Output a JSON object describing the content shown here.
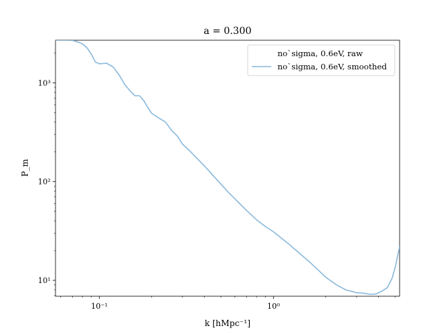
{
  "chart_data": {
    "type": "line",
    "title": "a = 0.300",
    "xlabel": "k [hMpc⁻¹]",
    "ylabel": "P_m",
    "xscale": "log",
    "yscale": "log",
    "xlim": [
      0.056,
      5.3
    ],
    "ylim": [
      6.9,
      2700
    ],
    "xticks": [
      {
        "value": 0.1,
        "label": "10⁻¹"
      },
      {
        "value": 1,
        "label": "10⁰"
      }
    ],
    "yticks": [
      {
        "value": 10,
        "label": "10¹"
      },
      {
        "value": 100,
        "label": "10²"
      },
      {
        "value": 1000,
        "label": "10³"
      }
    ],
    "legend_position": "top-right",
    "grid": false,
    "series": [
      {
        "name": "no`sigma, 0.6eV, raw",
        "color": "#ffffff",
        "x": [],
        "y": []
      },
      {
        "name": "no`sigma, 0.6eV, smoothed",
        "color": "#8ab9dc",
        "x": [
          0.056,
          0.06,
          0.065,
          0.07,
          0.075,
          0.08,
          0.085,
          0.09,
          0.095,
          0.1,
          0.11,
          0.12,
          0.13,
          0.14,
          0.15,
          0.16,
          0.17,
          0.18,
          0.19,
          0.2,
          0.22,
          0.24,
          0.26,
          0.28,
          0.3,
          0.33,
          0.36,
          0.4,
          0.45,
          0.5,
          0.55,
          0.6,
          0.7,
          0.8,
          0.9,
          1.0,
          1.2,
          1.4,
          1.6,
          1.8,
          2.0,
          2.3,
          2.6,
          3.0,
          3.3,
          3.6,
          3.9,
          4.2,
          4.5,
          4.8,
          5.0,
          5.3
        ],
        "y": [
          2700,
          2700,
          2700,
          2690,
          2600,
          2480,
          2260,
          1950,
          1620,
          1560,
          1580,
          1450,
          1200,
          960,
          830,
          740,
          740,
          660,
          560,
          490,
          440,
          400,
          330,
          290,
          240,
          205,
          175,
          145,
          115,
          94,
          78,
          67,
          51,
          41,
          35,
          31,
          24,
          19,
          15.5,
          12.8,
          10.7,
          9.0,
          8.0,
          7.5,
          7.4,
          7.2,
          7.3,
          7.8,
          8.4,
          10.5,
          13.5,
          22
        ]
      }
    ]
  }
}
